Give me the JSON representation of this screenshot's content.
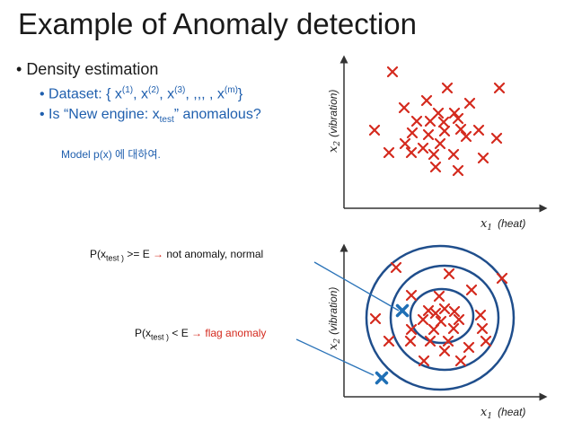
{
  "title": "Example of Anomaly detection",
  "bullet_main": "Density estimation",
  "dataset_prefix": "Dataset: { x",
  "dataset_sups": [
    "(1)",
    "(2)",
    "(3)",
    "(m)"
  ],
  "dataset_sep": ", ",
  "dataset_dots": ", ,,, , x",
  "dataset_close": "}",
  "question_prefix": "Is “New engine: x",
  "question_sub": "test",
  "question_suffix": "” anomalous?",
  "note": "Model p(x) 에 대하여.",
  "label_normal": {
    "prefix": "P(x",
    "sub": "test )",
    "op": " >= E ",
    "arrow": "→",
    "text": " not anomaly, normal"
  },
  "label_flag": {
    "prefix": "P(x",
    "sub": "test )",
    "op": " < E ",
    "arrow": "→",
    "text": " flag anomaly"
  },
  "axis": {
    "x_label": "x",
    "x_sub": "1",
    "x_word": "(heat)",
    "y_label": "x",
    "y_sub": "2",
    "y_word": "(vibration)"
  },
  "colors": {
    "points": "#d42a1e",
    "test": "#1f6fb5",
    "contours": "#1f4e8c",
    "bullet_blue": "#1f5fae"
  },
  "icons": {
    "data_point": "red-x-marker",
    "test_point": "blue-x-marker"
  }
}
